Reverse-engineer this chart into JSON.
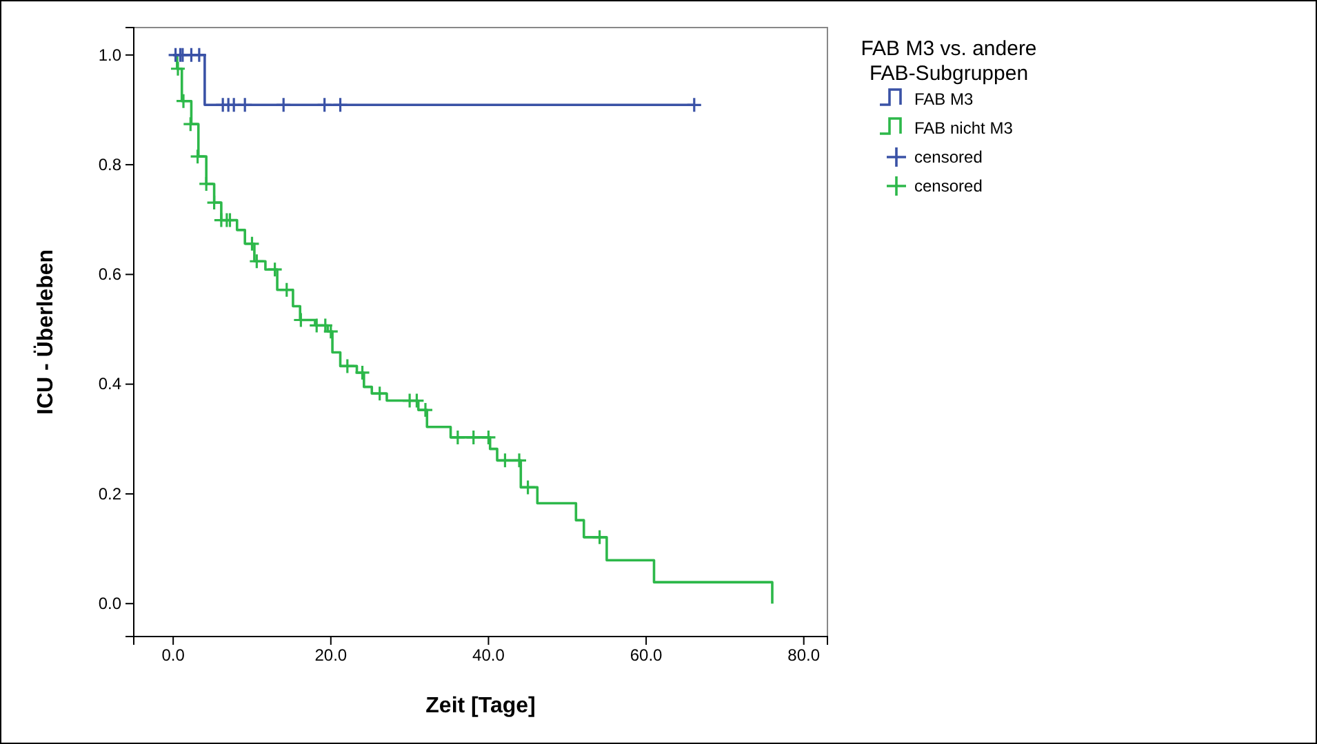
{
  "chart_data": {
    "type": "step",
    "xlabel": "Zeit [Tage]",
    "ylabel": "ICU - Überleben",
    "legend_title": "FAB M3 vs. andere FAB-Subgruppen",
    "xlim": [
      -5,
      83
    ],
    "ylim": [
      -0.06,
      1.05
    ],
    "xticks": [
      {
        "value": 0,
        "label": "0.0"
      },
      {
        "value": 20,
        "label": "20.0"
      },
      {
        "value": 40,
        "label": "40.0"
      },
      {
        "value": 60,
        "label": "60.0"
      },
      {
        "value": 80,
        "label": "80.0"
      }
    ],
    "yticks": [
      {
        "value": 0,
        "label": "0.0"
      },
      {
        "value": 0.2,
        "label": "0.2"
      },
      {
        "value": 0.4,
        "label": "0.4"
      },
      {
        "value": 0.6,
        "label": "0.6"
      },
      {
        "value": 0.8,
        "label": "0.8"
      },
      {
        "value": 1,
        "label": "1.0"
      }
    ],
    "legend": "top right",
    "grid": false,
    "series": [
      {
        "name": "FAB M3",
        "type": "step",
        "color": "#3a52a6",
        "x": [
          0,
          4.0,
          66.1
        ],
        "values": [
          1.0,
          0.909,
          0.909
        ]
      },
      {
        "name": "FAB nicht M3",
        "type": "step",
        "color": "#2db84a",
        "x": [
          0,
          0.5,
          1.1,
          2.3,
          3.2,
          4.2,
          5.2,
          6.1,
          8.1,
          9.1,
          10.3,
          11.7,
          13.2,
          15.2,
          16.1,
          18.0,
          19.6,
          20.2,
          21.2,
          23.3,
          24.2,
          25.2,
          27.1,
          31.1,
          32.2,
          35.2,
          40.2,
          41.1,
          44.1,
          46.2,
          51.1,
          52.1,
          55.0,
          61.0,
          76.0
        ],
        "values": [
          1.0,
          0.975,
          0.916,
          0.874,
          0.815,
          0.765,
          0.731,
          0.699,
          0.681,
          0.656,
          0.624,
          0.609,
          0.572,
          0.542,
          0.517,
          0.507,
          0.496,
          0.458,
          0.433,
          0.421,
          0.395,
          0.383,
          0.37,
          0.353,
          0.322,
          0.303,
          0.282,
          0.261,
          0.212,
          0.183,
          0.152,
          0.121,
          0.079,
          0.039,
          0.0
        ]
      },
      {
        "name": "censored",
        "type": "scatter",
        "marker": "cross",
        "color": "#3a52a6",
        "x": [
          0.3,
          0.9,
          1.2,
          2.3,
          3.3,
          6.3,
          7.0,
          7.7,
          9.1,
          14.0,
          19.2,
          21.2,
          66.1
        ],
        "values": [
          1.0,
          1.0,
          1.0,
          1.0,
          1.0,
          0.909,
          0.909,
          0.909,
          0.909,
          0.909,
          0.909,
          0.909,
          0.909
        ]
      },
      {
        "name": "censored",
        "type": "scatter",
        "marker": "cross",
        "color": "#2db84a",
        "x": [
          0.6,
          1.3,
          2.2,
          3.1,
          4.2,
          5.2,
          6.1,
          6.8,
          7.2,
          10.0,
          10.6,
          12.9,
          14.4,
          16.2,
          18.2,
          19.3,
          20.0,
          22.1,
          24.0,
          26.2,
          30.0,
          30.9,
          32.0,
          36.1,
          38.1,
          40.0,
          42.1,
          43.9,
          45.0,
          54.1
        ],
        "values": [
          0.975,
          0.916,
          0.874,
          0.815,
          0.765,
          0.731,
          0.699,
          0.699,
          0.699,
          0.656,
          0.624,
          0.609,
          0.572,
          0.517,
          0.507,
          0.507,
          0.496,
          0.433,
          0.421,
          0.383,
          0.37,
          0.37,
          0.353,
          0.303,
          0.303,
          0.303,
          0.261,
          0.261,
          0.212,
          0.121
        ]
      }
    ]
  }
}
